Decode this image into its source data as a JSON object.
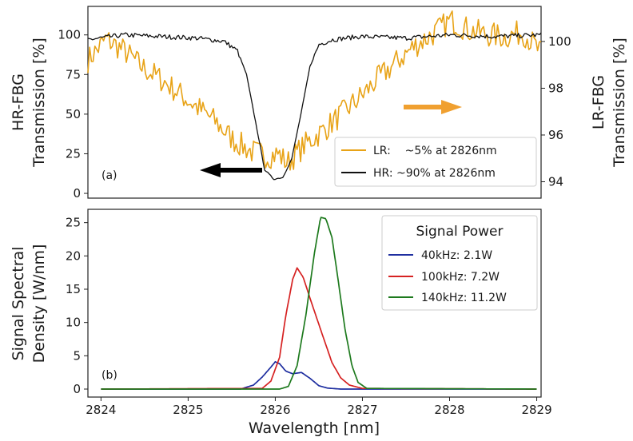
{
  "colors": {
    "lr": "#E8A317",
    "hr": "#111111",
    "p40": "#1f2fa0",
    "p100": "#d62222",
    "p140": "#1e7a1e",
    "arrow_orange": "#F0A030",
    "arrow_black": "#000000"
  },
  "chart_data": [
    {
      "type": "line",
      "panel_label": "(a)",
      "xlim": [
        2824,
        2829
      ],
      "ylim": [
        -3,
        118
      ],
      "y2lim": [
        93.3,
        101.5
      ],
      "ylabel_lines": [
        "HR-FBG",
        "Transmission [%]"
      ],
      "y2label_lines": [
        "LR-FBG",
        "Transmission [%]"
      ],
      "yticks": [
        "0",
        "25",
        "50",
        "75",
        "100"
      ],
      "ytick_values": [
        0,
        25,
        50,
        75,
        100
      ],
      "y2ticks": [
        "94",
        "96",
        "98",
        "100"
      ],
      "y2tick_values": [
        94,
        96,
        98,
        100
      ],
      "legend_position": "lower right",
      "series": [
        {
          "name": "LR:    ~5% at 2826nm",
          "axis": "right",
          "x": [
            2824.0,
            2824.2,
            2824.4,
            2824.6,
            2824.8,
            2825.0,
            2825.2,
            2825.4,
            2825.6,
            2825.8,
            2826.0,
            2826.1,
            2826.2,
            2826.3,
            2826.4,
            2826.6,
            2826.8,
            2827.0,
            2827.2,
            2827.4,
            2827.6,
            2827.8,
            2828.0,
            2828.2,
            2828.4,
            2828.6,
            2828.8,
            2829.0
          ],
          "y": [
            99.2,
            100.1,
            99.6,
            98.9,
            98.4,
            97.8,
            97.2,
            96.6,
            95.8,
            95.3,
            95.1,
            95.2,
            94.8,
            95.2,
            95.6,
            96.2,
            96.9,
            97.6,
            98.4,
            99.1,
            99.8,
            100.3,
            100.9,
            100.5,
            100.3,
            100.2,
            100.4,
            99.5
          ]
        },
        {
          "name": "HR: ~90% at 2826nm",
          "axis": "left",
          "x": [
            2824.0,
            2824.4,
            2824.8,
            2825.2,
            2825.5,
            2825.65,
            2825.75,
            2825.85,
            2825.95,
            2826.05,
            2826.15,
            2826.25,
            2826.35,
            2826.45,
            2826.55,
            2826.7,
            2827.0,
            2827.5,
            2828.0,
            2828.5,
            2829.0
          ],
          "y": [
            97,
            100,
            99,
            98,
            96,
            90,
            75,
            45,
            15,
            9,
            10,
            22,
            50,
            80,
            94,
            97,
            99,
            98,
            100,
            99,
            100
          ]
        }
      ]
    },
    {
      "type": "line",
      "panel_label": "(b)",
      "xlim": [
        2823.85,
        2829.05
      ],
      "ylim": [
        -1.2,
        27
      ],
      "xlabel": "Wavelength [nm]",
      "ylabel_lines": [
        "Signal Spectral",
        "Density [W/nm]"
      ],
      "xticks": [
        "2824",
        "2825",
        "2826",
        "2827",
        "2828",
        "2829"
      ],
      "xtick_values": [
        2824,
        2825,
        2826,
        2827,
        2828,
        2829
      ],
      "yticks": [
        "0",
        "5",
        "10",
        "15",
        "20",
        "25"
      ],
      "ytick_values": [
        0,
        5,
        10,
        15,
        20,
        25
      ],
      "legend_title": "Signal Power",
      "legend_position": "upper right",
      "series": [
        {
          "name": "40kHz: 2.1W",
          "x": [
            2824.0,
            2825.6,
            2825.75,
            2825.85,
            2825.95,
            2826.0,
            2826.05,
            2826.12,
            2826.2,
            2826.3,
            2826.4,
            2826.5,
            2826.6,
            2826.75,
            2829.0
          ],
          "y": [
            0,
            0,
            0.6,
            1.8,
            3.3,
            4.1,
            3.8,
            2.7,
            2.3,
            2.5,
            1.6,
            0.5,
            0.15,
            0,
            0
          ]
        },
        {
          "name": "100kHz: 7.2W",
          "x": [
            2824.0,
            2825.85,
            2825.95,
            2826.05,
            2826.12,
            2826.2,
            2826.25,
            2826.32,
            2826.42,
            2826.55,
            2826.65,
            2826.75,
            2826.85,
            2827.0,
            2829.0
          ],
          "y": [
            0,
            0.1,
            1.2,
            4.8,
            11.0,
            16.5,
            18.2,
            16.8,
            12.8,
            7.8,
            4.0,
            1.7,
            0.6,
            0.1,
            0
          ]
        },
        {
          "name": "140kHz: 11.2W",
          "x": [
            2824.0,
            2826.05,
            2826.15,
            2826.25,
            2826.35,
            2826.45,
            2826.52,
            2826.58,
            2826.65,
            2826.72,
            2826.8,
            2826.88,
            2826.95,
            2827.05,
            2829.0
          ],
          "y": [
            0,
            0,
            0.4,
            3.5,
            11.0,
            20.5,
            25.8,
            25.6,
            22.8,
            16.5,
            9.0,
            3.5,
            1.0,
            0.1,
            0
          ]
        }
      ]
    }
  ]
}
